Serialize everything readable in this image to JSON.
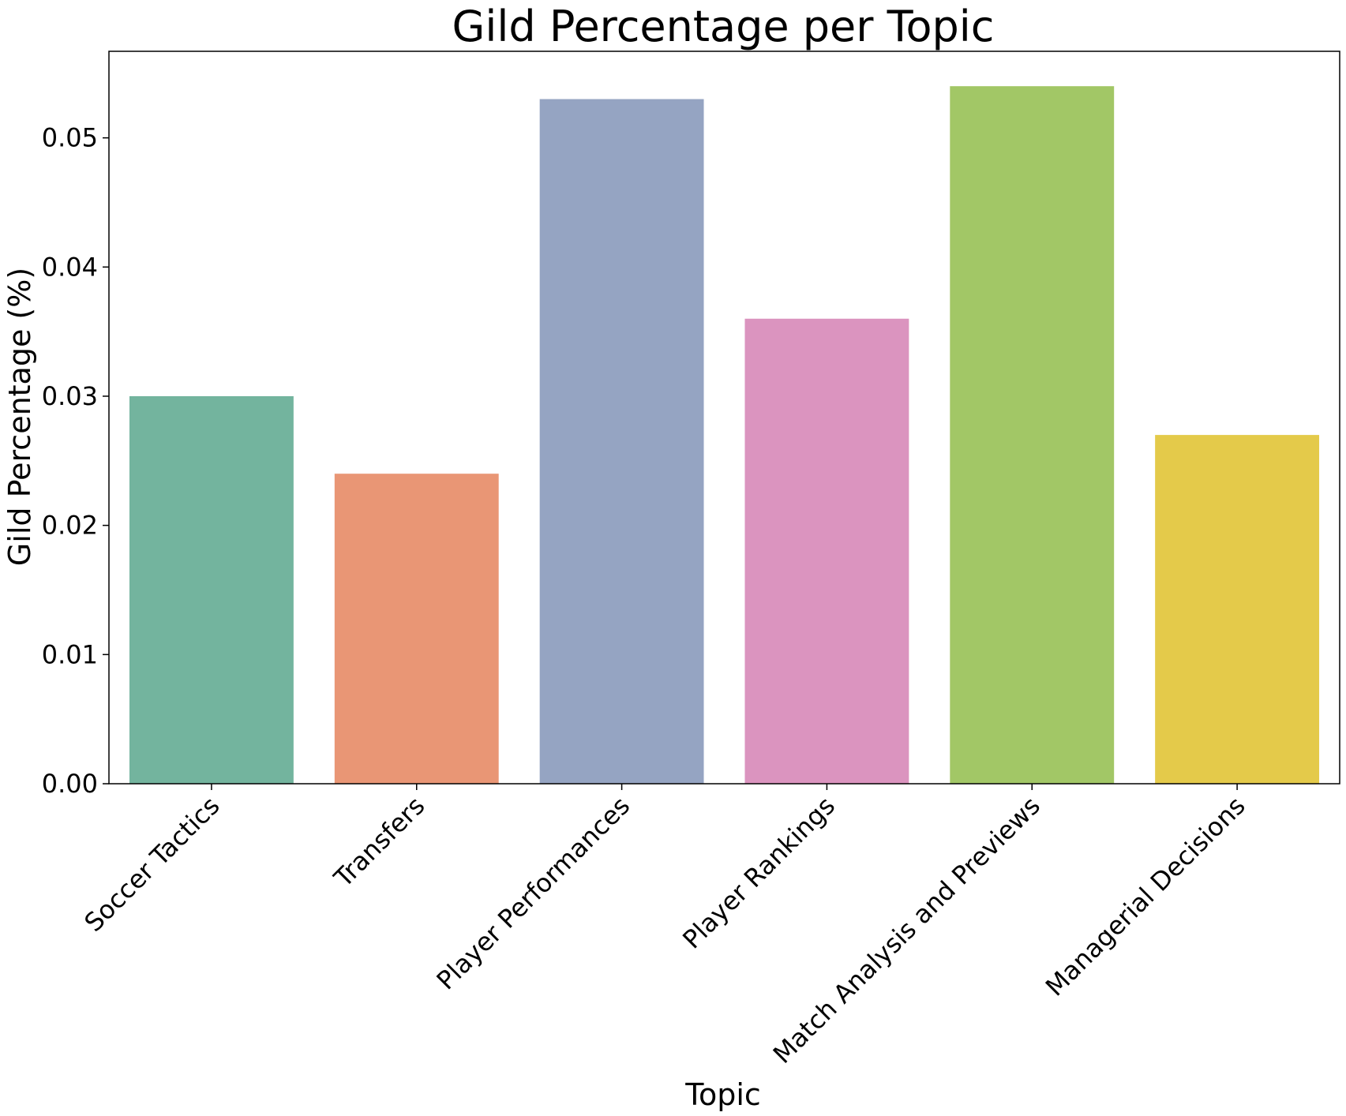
{
  "chart_data": {
    "type": "bar",
    "title": "Gild Percentage per Topic",
    "xlabel": "Topic",
    "ylabel": "Gild Percentage (%)",
    "categories": [
      "Soccer Tactics",
      "Transfers",
      "Player Performances",
      "Player Rankings",
      "Match Analysis and Previews",
      "Managerial Decisions"
    ],
    "values": [
      0.03,
      0.024,
      0.053,
      0.036,
      0.054,
      0.027
    ],
    "colors": [
      "#73b49e",
      "#e99675",
      "#95a4c2",
      "#db94bf",
      "#a2c766",
      "#e4ca4a"
    ],
    "ylim": [
      0,
      0.0567
    ],
    "yticks": [
      0.0,
      0.01,
      0.02,
      0.03,
      0.04,
      0.05
    ],
    "ytick_labels": [
      "0.00",
      "0.01",
      "0.02",
      "0.03",
      "0.04",
      "0.05"
    ],
    "grid": false,
    "legend": "none"
  }
}
